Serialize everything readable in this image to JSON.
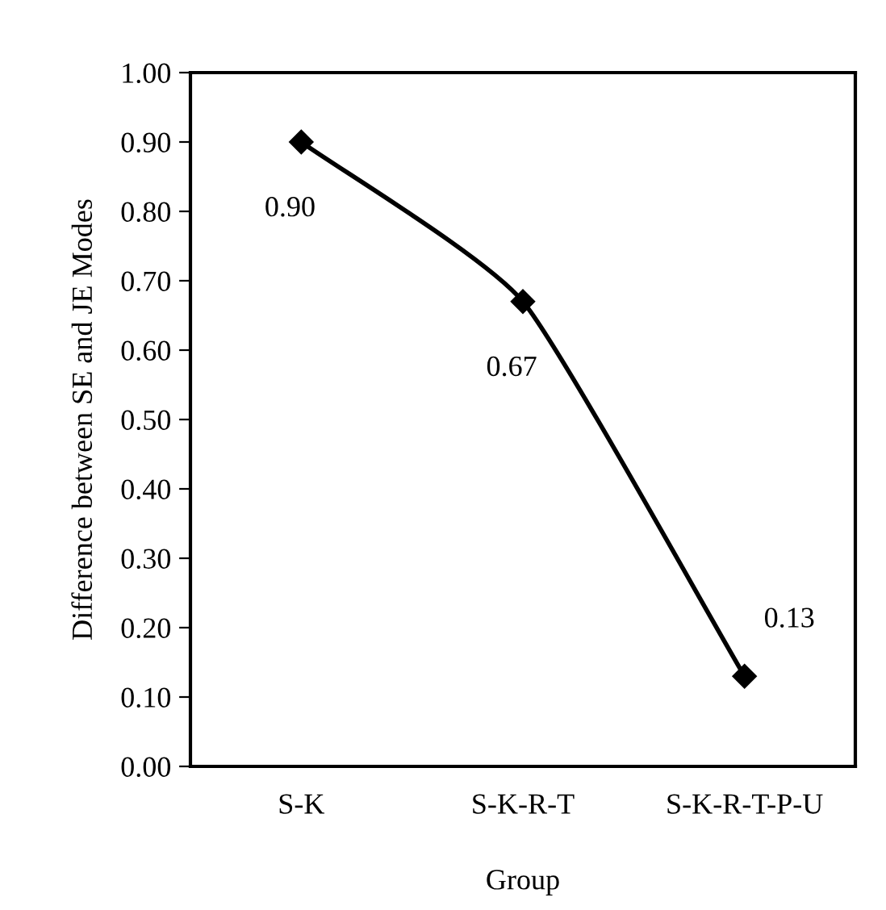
{
  "chart_data": {
    "type": "line",
    "xlabel": "Group",
    "ylabel": "Difference between SE and JE Modes",
    "categories": [
      "S-K",
      "S-K-R-T",
      "S-K-R-T-P-U"
    ],
    "series": [
      {
        "color": "#000000",
        "values": [
          0.9,
          0.67,
          0.13
        ],
        "value_labels": [
          "0.90",
          "0.67",
          "0.13"
        ]
      }
    ],
    "marker": "diamond",
    "line_style": "solid",
    "grid": false,
    "legend": false,
    "ylim": [
      0,
      1
    ],
    "yticks": [
      {
        "value": 0,
        "label": "0.00"
      },
      {
        "value": 0.1,
        "label": "0.10"
      },
      {
        "value": 0.2,
        "label": "0.20"
      },
      {
        "value": 0.3,
        "label": "0.30"
      },
      {
        "value": 0.4,
        "label": "0.40"
      },
      {
        "value": 0.5,
        "label": "0.50"
      },
      {
        "value": 0.6,
        "label": "0.60"
      },
      {
        "value": 0.7,
        "label": "0.70"
      },
      {
        "value": 0.8,
        "label": "0.80"
      },
      {
        "value": 0.9,
        "label": "0.90"
      },
      {
        "value": 1,
        "label": "1.00"
      }
    ]
  }
}
